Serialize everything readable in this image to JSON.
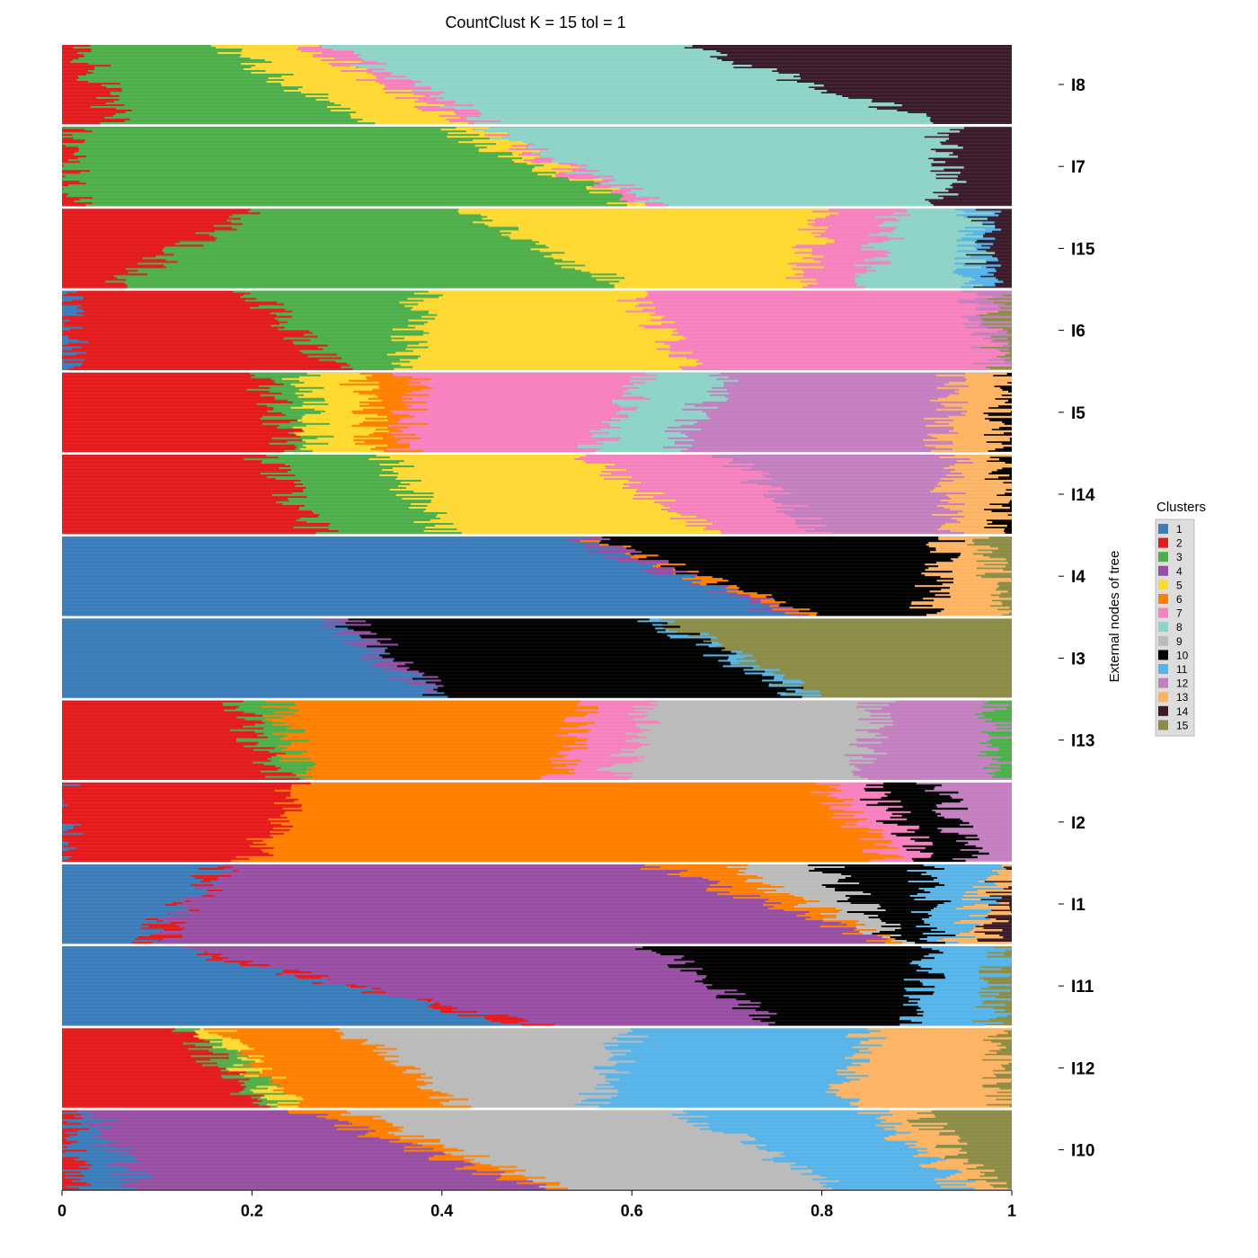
{
  "chart_data": {
    "type": "bar",
    "orientation": "horizontal-stacked-structure-plot",
    "title": "CountClust K =  15 tol =  1",
    "xlabel": "",
    "ylabel": "External nodes of tree",
    "xlim": [
      0,
      1
    ],
    "x_ticks": [
      "0",
      "0.2",
      "0.4",
      "0.6",
      "0.8",
      "1"
    ],
    "grid": false,
    "legend": {
      "title": "Clusters",
      "position": "right",
      "entries": [
        {
          "label": "1",
          "color": "#3A7DBA"
        },
        {
          "label": "2",
          "color": "#E41A1C"
        },
        {
          "label": "3",
          "color": "#4DAF4A"
        },
        {
          "label": "4",
          "color": "#984EA3"
        },
        {
          "label": "5",
          "color": "#FFD92F"
        },
        {
          "label": "6",
          "color": "#FF7F00"
        },
        {
          "label": "7",
          "color": "#F781BF"
        },
        {
          "label": "8",
          "color": "#8DD3C7"
        },
        {
          "label": "9",
          "color": "#BBBBBB"
        },
        {
          "label": "10",
          "color": "#000000"
        },
        {
          "label": "11",
          "color": "#56B4E9"
        },
        {
          "label": "12",
          "color": "#C47FC0"
        },
        {
          "label": "13",
          "color": "#FDB462"
        },
        {
          "label": "14",
          "color": "#3B1B2B"
        },
        {
          "label": "15",
          "color": "#8C8C47"
        }
      ]
    },
    "panels": [
      {
        "label": "I8",
        "segments": [
          {
            "cluster": "2",
            "from": [
              0.02,
              0.06
            ]
          },
          {
            "cluster": "3",
            "from": [
              0.17,
              0.31
            ]
          },
          {
            "cluster": "5",
            "from": [
              0.26,
              0.42
            ]
          },
          {
            "cluster": "7",
            "from": [
              0.28,
              0.45
            ]
          },
          {
            "cluster": "8",
            "from": [
              0.65,
              0.93
            ]
          }
        ],
        "tail": "14"
      },
      {
        "label": "I7",
        "segments": [
          {
            "cluster": "2",
            "from": [
              0.01,
              0.01
            ]
          },
          {
            "cluster": "3",
            "from": [
              0.4,
              0.6
            ]
          },
          {
            "cluster": "5",
            "from": [
              0.44,
              0.6
            ]
          },
          {
            "cluster": "7",
            "from": [
              0.44,
              0.63
            ]
          },
          {
            "cluster": "8",
            "from": [
              0.93,
              0.93
            ]
          }
        ],
        "tail": "14"
      },
      {
        "label": "I15",
        "segments": [
          {
            "cluster": "2",
            "from": [
              0.2,
              0.05
            ]
          },
          {
            "cluster": "3",
            "from": [
              0.42,
              0.59
            ]
          },
          {
            "cluster": "5",
            "from": [
              0.8,
              0.78
            ]
          },
          {
            "cluster": "7",
            "from": [
              0.88,
              0.84
            ]
          },
          {
            "cluster": "8",
            "from": [
              0.96,
              0.96
            ]
          },
          {
            "cluster": "11",
            "from": [
              0.97,
              0.97
            ]
          }
        ],
        "tail": "14"
      },
      {
        "label": "I6",
        "segments": [
          {
            "cluster": "1",
            "from": [
              0.0,
              0.01
            ]
          },
          {
            "cluster": "2",
            "from": [
              0.2,
              0.29
            ]
          },
          {
            "cluster": "3",
            "from": [
              0.38,
              0.36
            ]
          },
          {
            "cluster": "5",
            "from": [
              0.6,
              0.66
            ]
          },
          {
            "cluster": "7",
            "from": [
              0.96,
              0.98
            ]
          },
          {
            "cluster": "12",
            "from": [
              0.985,
              0.99
            ]
          }
        ],
        "tail": "15"
      },
      {
        "label": "I5",
        "segments": [
          {
            "cluster": "2",
            "from": [
              0.21,
              0.24
            ]
          },
          {
            "cluster": "3",
            "from": [
              0.25,
              0.27
            ]
          },
          {
            "cluster": "5",
            "from": [
              0.31,
              0.33
            ]
          },
          {
            "cluster": "6",
            "from": [
              0.37,
              0.36
            ]
          },
          {
            "cluster": "7",
            "from": [
              0.62,
              0.56
            ]
          },
          {
            "cluster": "8",
            "from": [
              0.7,
              0.64
            ]
          },
          {
            "cluster": "12",
            "from": [
              0.94,
              0.92
            ]
          },
          {
            "cluster": "13",
            "from": [
              0.995,
              0.99
            ]
          }
        ],
        "tail": "10"
      },
      {
        "label": "I14",
        "segments": [
          {
            "cluster": "2",
            "from": [
              0.21,
              0.27
            ]
          },
          {
            "cluster": "3",
            "from": [
              0.34,
              0.4
            ]
          },
          {
            "cluster": "5",
            "from": [
              0.55,
              0.68
            ]
          },
          {
            "cluster": "7",
            "from": [
              0.7,
              0.8
            ]
          },
          {
            "cluster": "12",
            "from": [
              0.94,
              0.93
            ]
          },
          {
            "cluster": "13",
            "from": [
              0.995,
              0.99
            ]
          }
        ],
        "tail": "10"
      },
      {
        "label": "I4",
        "segments": [
          {
            "cluster": "1",
            "from": [
              0.53,
              0.76
            ]
          },
          {
            "cluster": "4",
            "from": [
              0.55,
              0.78
            ]
          },
          {
            "cluster": "6",
            "from": [
              0.56,
              0.79
            ]
          },
          {
            "cluster": "10",
            "from": [
              0.93,
              0.91
            ]
          },
          {
            "cluster": "13",
            "from": [
              0.97,
              1.0
            ]
          }
        ],
        "tail": "15"
      },
      {
        "label": "I3",
        "segments": [
          {
            "cluster": "1",
            "from": [
              0.28,
              0.39
            ]
          },
          {
            "cluster": "4",
            "from": [
              0.3,
              0.4
            ]
          },
          {
            "cluster": "10",
            "from": [
              0.62,
              0.78
            ]
          },
          {
            "cluster": "11",
            "from": [
              0.63,
              0.79
            ]
          }
        ],
        "tail": "15"
      },
      {
        "label": "I13",
        "segments": [
          {
            "cluster": "2",
            "from": [
              0.18,
              0.23
            ]
          },
          {
            "cluster": "3",
            "from": [
              0.23,
              0.25
            ]
          },
          {
            "cluster": "6",
            "from": [
              0.55,
              0.52
            ]
          },
          {
            "cluster": "7",
            "from": [
              0.62,
              0.58
            ]
          },
          {
            "cluster": "9",
            "from": [
              0.86,
              0.84
            ]
          },
          {
            "cluster": "12",
            "from": [
              0.98,
              0.99
            ]
          }
        ],
        "tail": "3"
      },
      {
        "label": "I2",
        "segments": [
          {
            "cluster": "1",
            "from": [
              0.0,
              0.0
            ]
          },
          {
            "cluster": "2",
            "from": [
              0.25,
              0.2
            ]
          },
          {
            "cluster": "6",
            "from": [
              0.8,
              0.87
            ]
          },
          {
            "cluster": "7",
            "from": [
              0.85,
              0.91
            ]
          },
          {
            "cluster": "10",
            "from": [
              0.92,
              0.96
            ]
          }
        ],
        "tail": "12"
      },
      {
        "label": "I1",
        "segments": [
          {
            "cluster": "1",
            "from": [
              0.17,
              0.08
            ]
          },
          {
            "cluster": "2",
            "from": [
              0.17,
              0.1
            ]
          },
          {
            "cluster": "4",
            "from": [
              0.62,
              0.86
            ]
          },
          {
            "cluster": "6",
            "from": [
              0.7,
              0.87
            ]
          },
          {
            "cluster": "9",
            "from": [
              0.8,
              0.88
            ]
          },
          {
            "cluster": "10",
            "from": [
              0.91,
              0.92
            ]
          },
          {
            "cluster": "11",
            "from": [
              0.99,
              0.94
            ]
          },
          {
            "cluster": "13",
            "from": [
              0.995,
              0.98
            ]
          }
        ],
        "tail": "14"
      },
      {
        "label": "I11",
        "segments": [
          {
            "cluster": "1",
            "from": [
              0.11,
              0.48
            ]
          },
          {
            "cluster": "2",
            "from": [
              0.12,
              0.5
            ]
          },
          {
            "cluster": "4",
            "from": [
              0.62,
              0.75
            ]
          },
          {
            "cluster": "10",
            "from": [
              0.92,
              0.89
            ]
          },
          {
            "cluster": "11",
            "from": [
              0.99,
              0.98
            ]
          }
        ],
        "tail": "15"
      },
      {
        "label": "I12",
        "segments": [
          {
            "cluster": "2",
            "from": [
              0.13,
              0.21
            ]
          },
          {
            "cluster": "3",
            "from": [
              0.14,
              0.24
            ]
          },
          {
            "cluster": "5",
            "from": [
              0.16,
              0.25
            ]
          },
          {
            "cluster": "6",
            "from": [
              0.3,
              0.42
            ]
          },
          {
            "cluster": "9",
            "from": [
              0.6,
              0.56
            ]
          },
          {
            "cluster": "11",
            "from": [
              0.85,
              0.82
            ]
          },
          {
            "cluster": "13",
            "from": [
              0.99,
              0.99
            ]
          }
        ],
        "tail": "15"
      },
      {
        "label": "I10",
        "segments": [
          {
            "cluster": "2",
            "from": [
              0.01,
              0.01
            ]
          },
          {
            "cluster": "1",
            "from": [
              0.03,
              0.08
            ]
          },
          {
            "cluster": "4",
            "from": [
              0.25,
              0.5
            ]
          },
          {
            "cluster": "6",
            "from": [
              0.3,
              0.52
            ]
          },
          {
            "cluster": "9",
            "from": [
              0.65,
              0.82
            ]
          },
          {
            "cluster": "11",
            "from": [
              0.85,
              0.95
            ]
          },
          {
            "cluster": "13",
            "from": [
              0.9,
              0.98
            ]
          }
        ],
        "tail": "15"
      }
    ]
  }
}
